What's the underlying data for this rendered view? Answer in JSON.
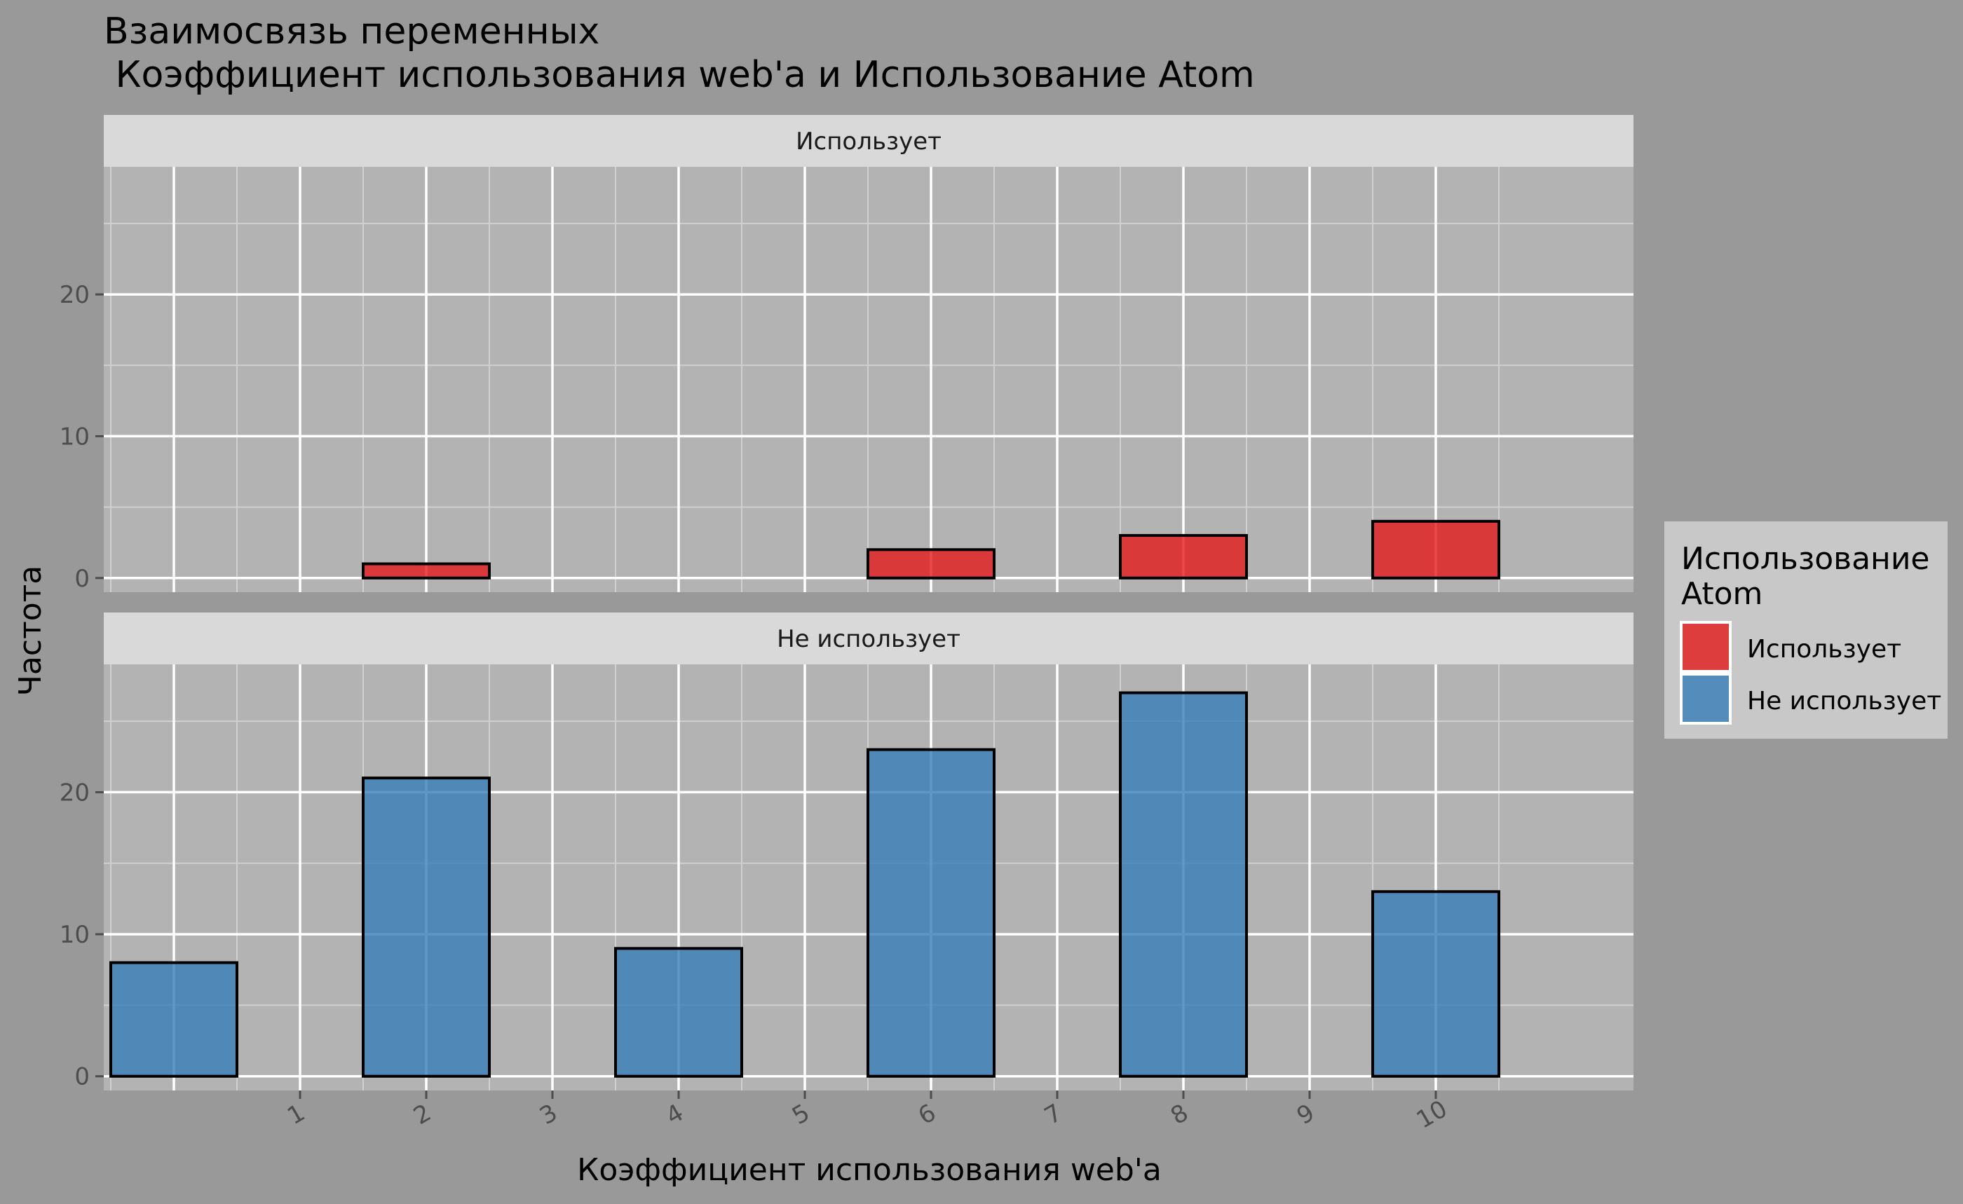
{
  "chart_data": {
    "type": "bar",
    "title_line1": "Взаимосвязь переменных",
    "title_line2": " Коэффициент использования web'a и Использование Atom",
    "xlabel": "Коэффициент использования web'a",
    "ylabel": "Частота",
    "categories": [
      "",
      "1",
      "2",
      "3",
      "4",
      "5",
      "6",
      "7",
      "8",
      "9",
      "10"
    ],
    "x_tick_labels": [
      "1",
      "2",
      "3",
      "4",
      "5",
      "6",
      "7",
      "8",
      "9",
      "10"
    ],
    "y_ticks": [
      0,
      10,
      20
    ],
    "ylim": [
      -1,
      29
    ],
    "grid": true,
    "legend": {
      "title_line1": "Использование",
      "title_line2": "Atom",
      "placement": "right"
    },
    "panels": [
      {
        "strip_label": "Использует",
        "series_name": "Использует",
        "color": "#e41a1c",
        "values": [
          0,
          1,
          0,
          2,
          3,
          4
        ],
        "bar_categories": [
          "",
          "2",
          "4",
          "6",
          "8",
          "10"
        ]
      },
      {
        "strip_label": "Не использует",
        "series_name": "Не использует",
        "color": "#377eb8",
        "values": [
          8,
          21,
          9,
          23,
          27,
          13
        ],
        "bar_categories": [
          "",
          "2",
          "4",
          "6",
          "8",
          "10"
        ]
      }
    ]
  }
}
